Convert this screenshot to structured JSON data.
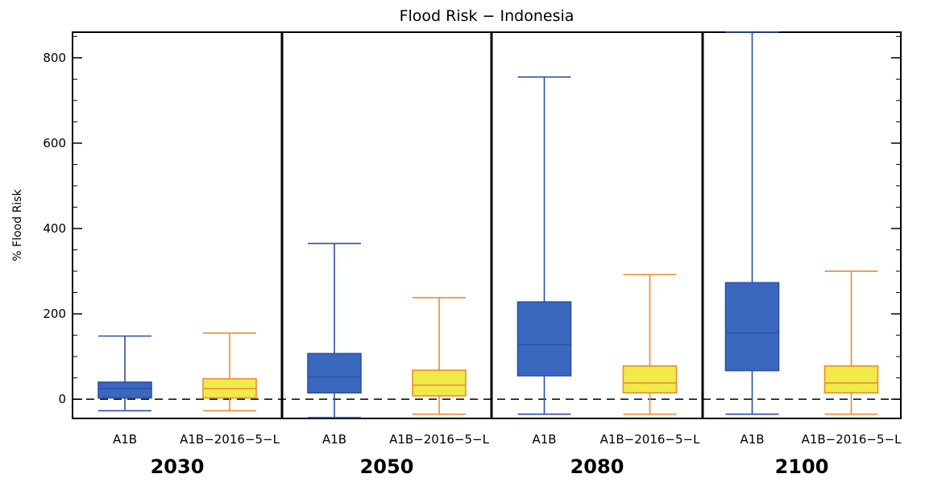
{
  "chart_data": {
    "type": "box",
    "title": "Flood Risk − Indonesia",
    "xlabel": "",
    "ylabel": "% Flood Risk",
    "ylim": [
      -45,
      860
    ],
    "yticks": [
      0,
      200,
      400,
      600,
      800
    ],
    "reference_line": 0,
    "groups": [
      {
        "label": "2030",
        "boxes": [
          {
            "category": "A1B",
            "color": "#3a68bf",
            "whisker_low": -27,
            "q1": 3,
            "median": 25,
            "q3": 40,
            "whisker_high": 148
          },
          {
            "category": "A1B−2016−5−L",
            "color": "#f0ea4a",
            "whisker_low": -27,
            "q1": 3,
            "median": 25,
            "q3": 48,
            "whisker_high": 155
          }
        ]
      },
      {
        "label": "2050",
        "boxes": [
          {
            "category": "A1B",
            "color": "#3a68bf",
            "whisker_low": -43,
            "q1": 15,
            "median": 52,
            "q3": 107,
            "whisker_high": 365
          },
          {
            "category": "A1B−2016−5−L",
            "color": "#f0ea4a",
            "whisker_low": -35,
            "q1": 8,
            "median": 33,
            "q3": 68,
            "whisker_high": 238
          }
        ]
      },
      {
        "label": "2080",
        "boxes": [
          {
            "category": "A1B",
            "color": "#3a68bf",
            "whisker_low": -35,
            "q1": 55,
            "median": 128,
            "q3": 228,
            "whisker_high": 755
          },
          {
            "category": "A1B−2016−5−L",
            "color": "#f0ea4a",
            "whisker_low": -35,
            "q1": 15,
            "median": 38,
            "q3": 78,
            "whisker_high": 292
          }
        ]
      },
      {
        "label": "2100",
        "boxes": [
          {
            "category": "A1B",
            "color": "#3a68bf",
            "whisker_low": -35,
            "q1": 67,
            "median": 155,
            "q3": 273,
            "whisker_high": 860
          },
          {
            "category": "A1B−2016−5−L",
            "color": "#f0ea4a",
            "whisker_low": -35,
            "q1": 15,
            "median": 38,
            "q3": 78,
            "whisker_high": 300
          }
        ]
      }
    ]
  },
  "colors": {
    "a1b_fill": "#3a68bf",
    "a1b_line": "#2e4fa6",
    "alt_fill": "#f0ea4a",
    "alt_line": "#f08c2a",
    "axis": "#000000"
  }
}
